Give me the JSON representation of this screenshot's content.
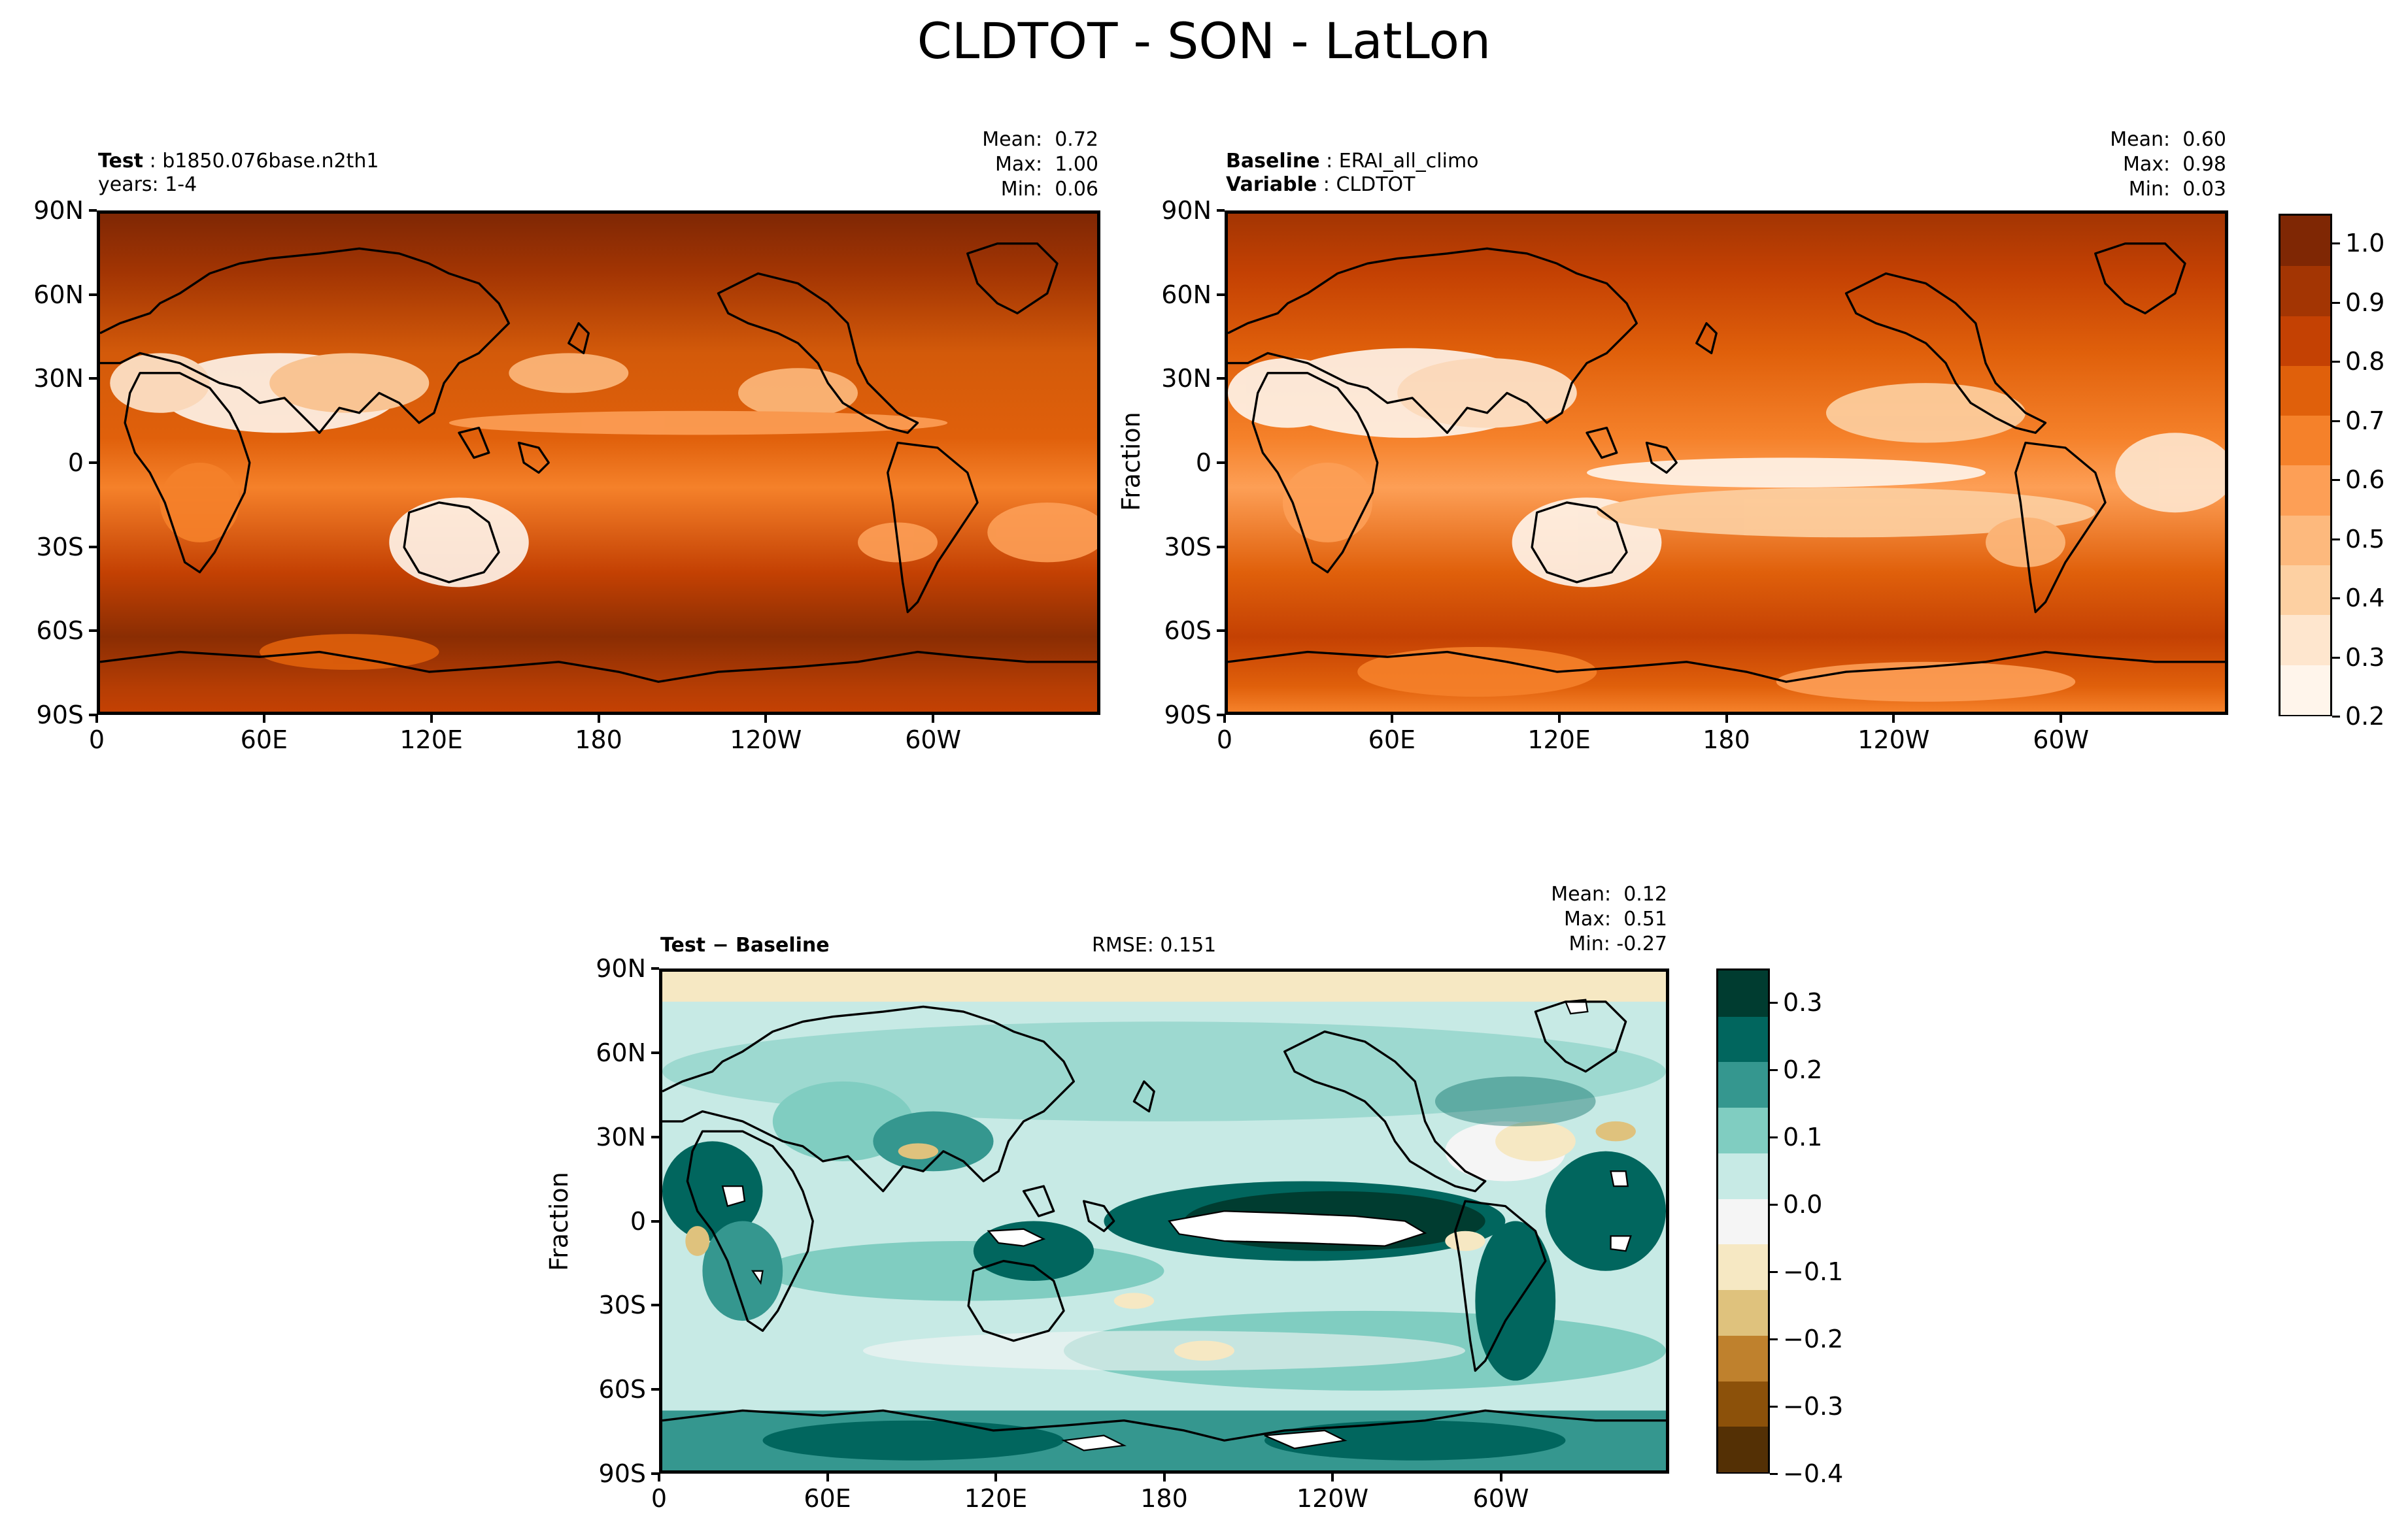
{
  "title": "CLDTOT - SON - LatLon",
  "panels": {
    "test": {
      "label_bold": "Test",
      "label_value": "b1850.076base.n2th1",
      "sub_label": "years: 1-4",
      "stats": {
        "mean": "Mean:  0.72",
        "max": "Max:  1.00",
        "min": "Min:  0.06"
      }
    },
    "baseline": {
      "label_bold": "Baseline",
      "label_value": "ERAI_all_climo",
      "var_bold": "Variable",
      "var_value": "CLDTOT",
      "stats": {
        "mean": "Mean:  0.60",
        "max": "Max:  0.98",
        "min": "Min:  0.03"
      },
      "ylabel": "Fraction"
    },
    "diff": {
      "label": "Test − Baseline",
      "rmse": "RMSE: 0.151",
      "stats": {
        "mean": "Mean:  0.12",
        "max": "Max:  0.51",
        "min": "Min: -0.27"
      },
      "ylabel": "Fraction"
    }
  },
  "lat_ticks": [
    "90N",
    "60N",
    "30N",
    "0",
    "30S",
    "60S",
    "90S"
  ],
  "lon_ticks": [
    "0",
    "60E",
    "120E",
    "180",
    "120W",
    "60W"
  ],
  "colorbar_top": {
    "ticks": [
      "1.0",
      "0.9",
      "0.8",
      "0.7",
      "0.6",
      "0.5",
      "0.4",
      "0.3",
      "0.2"
    ],
    "colors": [
      "#fff5eb",
      "#fee6ce",
      "#fdd0a2",
      "#fdb97d",
      "#fd9f56",
      "#f5812a",
      "#e0600b",
      "#c44103",
      "#a33503",
      "#7f2704"
    ],
    "range": [
      0.2,
      1.05
    ]
  },
  "colorbar_diff": {
    "ticks": [
      "0.3",
      "0.2",
      "0.1",
      "0.0",
      "−0.1",
      "−0.2",
      "−0.3",
      "−0.4"
    ],
    "colors": [
      "#543005",
      "#8c510a",
      "#bf812d",
      "#dfc27d",
      "#f6e8c3",
      "#f5f5f5",
      "#c7eae5",
      "#80cdc1",
      "#35978f",
      "#01665e",
      "#003c30"
    ],
    "range": [
      -0.4,
      0.35
    ]
  }
}
